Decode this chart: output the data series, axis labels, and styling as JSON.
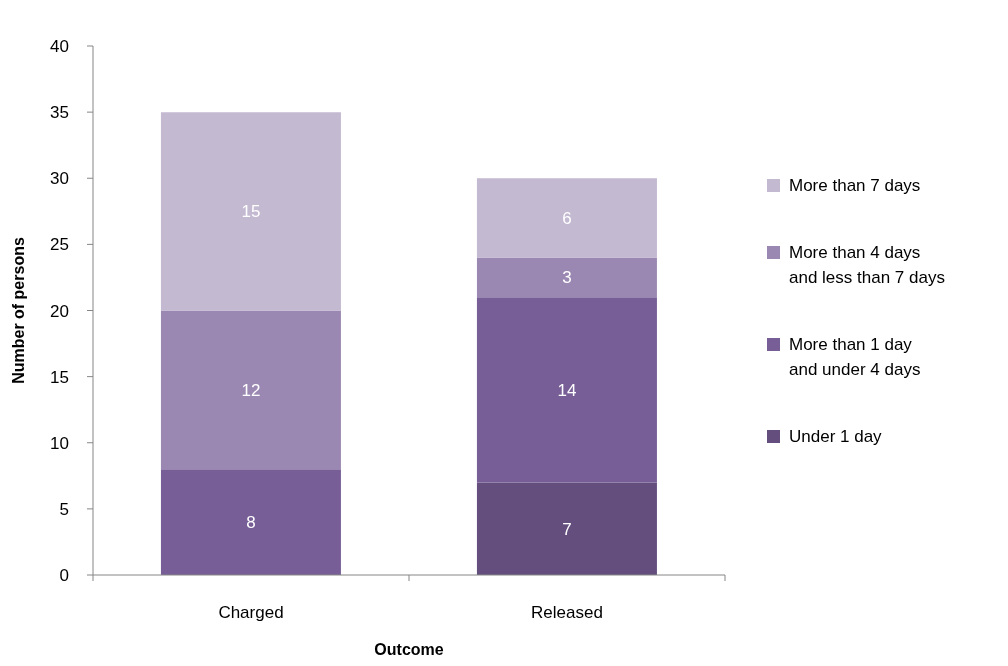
{
  "chart_data": {
    "type": "bar",
    "stacked": true,
    "xlabel": "Outcome",
    "ylabel": "Number of persons",
    "categories": [
      "Charged",
      "Released"
    ],
    "series": [
      {
        "name": "Under 1 day",
        "color": "#634e7e",
        "values": [
          null,
          7
        ]
      },
      {
        "name": "More than 1 day and under 4 days",
        "color": "#775e96",
        "values": [
          8,
          14
        ]
      },
      {
        "name": "More than 4 days and less than 7 days",
        "color": "#9b88b2",
        "values": [
          12,
          3
        ]
      },
      {
        "name": "More than 7 days",
        "color": "#c3b9d1",
        "values": [
          15,
          6
        ]
      }
    ],
    "ylim": [
      0,
      40
    ],
    "yticks": [
      0,
      5,
      10,
      15,
      20,
      25,
      30,
      35,
      40
    ],
    "data_labels": true,
    "legend": "right"
  }
}
